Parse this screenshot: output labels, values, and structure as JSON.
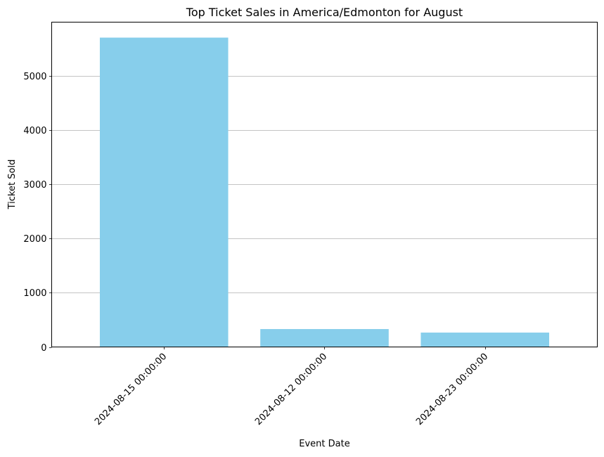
{
  "chart_data": {
    "type": "bar",
    "title": "Top Ticket Sales in America/Edmonton for August",
    "xlabel": "Event Date",
    "ylabel": "Ticket Sold",
    "categories": [
      "2024-08-15 00:00:00",
      "2024-08-12 00:00:00",
      "2024-08-23 00:00:00"
    ],
    "values": [
      5700,
      330,
      265
    ],
    "ylim": [
      0,
      5985
    ],
    "yticks": [
      0,
      1000,
      2000,
      3000,
      4000,
      5000
    ],
    "grid": "y-axis",
    "xtick_rotation_deg": 45,
    "colors": {
      "bar": "#87ceeb",
      "grid": "#b0b0b0",
      "axis": "#000000"
    }
  }
}
